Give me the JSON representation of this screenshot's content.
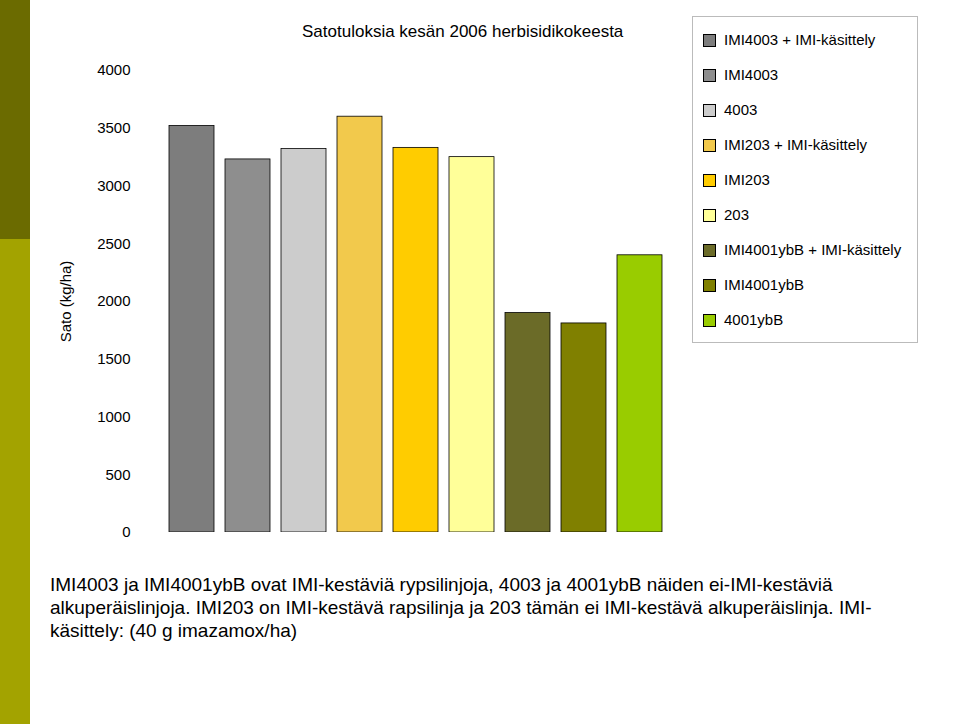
{
  "chart_data": {
    "type": "bar",
    "title": "Satotuloksia kesän 2006 herbisidikokeesta",
    "y_label": "Sato (kg/ha)",
    "categories": [
      null
    ],
    "series": [
      {
        "name": "IMI4003 + IMI-käsittely",
        "color": "#7d7d7d",
        "values": [
          3520
        ]
      },
      {
        "name": "IMI4003",
        "color": "#8e8e8e",
        "values": [
          3230
        ]
      },
      {
        "name": "4003",
        "color": "#cccccc",
        "values": [
          3320
        ]
      },
      {
        "name": "IMI203 + IMI-käsittely",
        "color": "#f2c94c",
        "values": [
          3600
        ]
      },
      {
        "name": "IMI203",
        "color": "#ffcc00",
        "values": [
          3330
        ]
      },
      {
        "name": "203",
        "color": "#ffff99",
        "values": [
          3250
        ]
      },
      {
        "name": "IMI4001ybB + IMI-käsittely",
        "color": "#6b6b28",
        "values": [
          1900
        ]
      },
      {
        "name": "IMI4001ybB",
        "color": "#808000",
        "values": [
          1810
        ]
      },
      {
        "name": "4001ybB",
        "color": "#99cc00",
        "values": [
          2400
        ]
      }
    ],
    "ylim": [
      0,
      4000
    ],
    "yticks": [
      0,
      500,
      1000,
      1500,
      2000,
      2500,
      3000,
      3500,
      4000
    ],
    "grid": false,
    "legend": "right",
    "caption": "IMI4003 ja IMI4001ybB ovat IMI-kestäviä rypsilinjoja, 4003 ja 4001ybB näiden ei-IMI-kestäviä alkuperäislinjoja. IMI203 on IMI-kestävä rapsilinja ja 203 tämän ei IMI-kestävä alkuperäislinja. IMI-käsittely: (40 g imazamox/ha)"
  }
}
